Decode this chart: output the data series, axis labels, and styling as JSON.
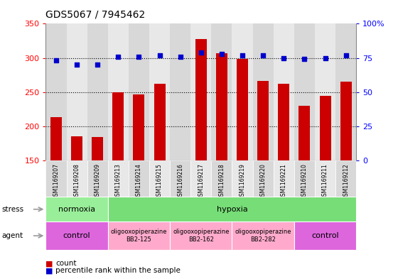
{
  "title": "GDS5067 / 7945462",
  "samples": [
    "GSM1169207",
    "GSM1169208",
    "GSM1169209",
    "GSM1169213",
    "GSM1169214",
    "GSM1169215",
    "GSM1169216",
    "GSM1169217",
    "GSM1169218",
    "GSM1169219",
    "GSM1169220",
    "GSM1169221",
    "GSM1169210",
    "GSM1169211",
    "GSM1169212"
  ],
  "counts": [
    213,
    185,
    184,
    250,
    247,
    262,
    150,
    328,
    307,
    299,
    266,
    262,
    230,
    245,
    265
  ],
  "percentiles": [
    73,
    70,
    70,
    76,
    76,
    77,
    76,
    79,
    78,
    77,
    77,
    75,
    74,
    75,
    77
  ],
  "ylim_left": [
    150,
    350
  ],
  "ylim_right": [
    0,
    100
  ],
  "yticks_left": [
    150,
    200,
    250,
    300,
    350
  ],
  "yticks_right": [
    0,
    25,
    50,
    75,
    100
  ],
  "bar_color": "#cc0000",
  "dot_color": "#0000cc",
  "bar_width": 0.55,
  "bg_color": "#ffffff",
  "col_colors": [
    "#d8d8d8",
    "#e8e8e8"
  ],
  "stress_normoxia_color": "#99ee99",
  "stress_hypoxia_color": "#77dd77",
  "agent_control_color": "#dd66dd",
  "agent_oligo_color": "#ffaacc",
  "grid_dotted_color": "#000000",
  "label_arrow_color": "#aaaaaa"
}
